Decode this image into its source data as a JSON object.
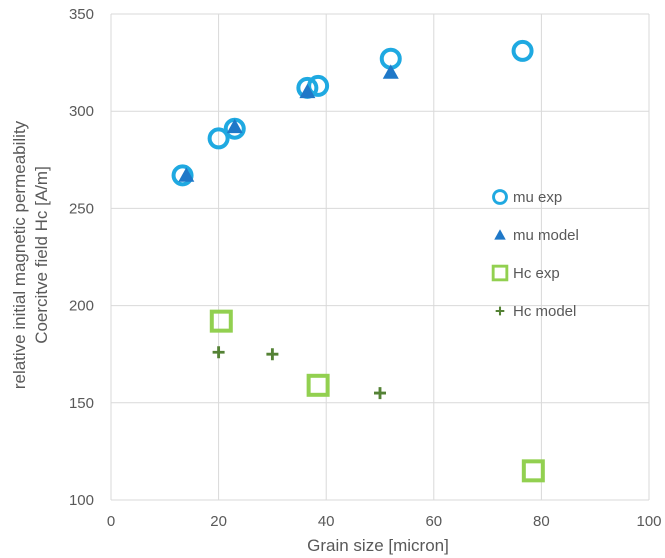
{
  "chart_data": {
    "type": "scatter",
    "title": "",
    "xlabel": "Grain size [micron]",
    "ylabel_lines": [
      "relative initial magnetic permeability",
      "Coercitve field Hc [A/m]"
    ],
    "xlim": [
      0,
      100
    ],
    "ylim": [
      100,
      350
    ],
    "x_ticks": [
      0,
      20,
      40,
      60,
      80,
      100
    ],
    "y_ticks": [
      100,
      150,
      200,
      250,
      300,
      350
    ],
    "grid": "both",
    "legend_position": "right",
    "series": [
      {
        "name": "mu exp",
        "marker": "circle-open",
        "color": "#1fa9e1",
        "points": [
          [
            13.3,
            267
          ],
          [
            20,
            286
          ],
          [
            23,
            291
          ],
          [
            36.5,
            312
          ],
          [
            38.5,
            313
          ],
          [
            52,
            327
          ],
          [
            76.5,
            331
          ]
        ]
      },
      {
        "name": "mu model",
        "marker": "triangle",
        "color": "#1f78c8",
        "points": [
          [
            14,
            267
          ],
          [
            23,
            292
          ],
          [
            36.5,
            310
          ],
          [
            52,
            320
          ]
        ]
      },
      {
        "name": "Hc exp",
        "marker": "square-open",
        "color": "#92d050",
        "points": [
          [
            20.5,
            192
          ],
          [
            38.5,
            159
          ],
          [
            78.5,
            115
          ]
        ]
      },
      {
        "name": "Hc model",
        "marker": "plus",
        "color": "#548235",
        "points": [
          [
            20,
            176
          ],
          [
            30,
            175
          ],
          [
            50,
            155
          ]
        ]
      }
    ]
  }
}
